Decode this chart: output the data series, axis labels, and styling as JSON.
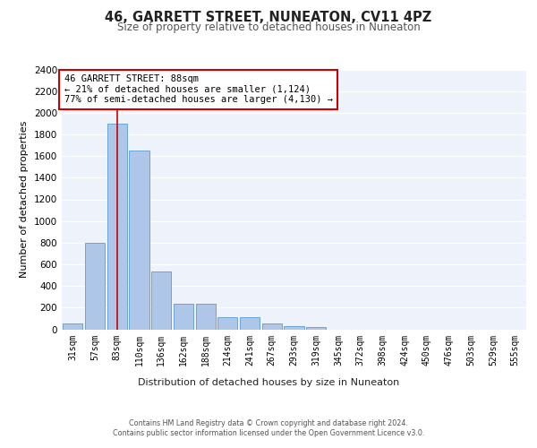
{
  "title1": "46, GARRETT STREET, NUNEATON, CV11 4PZ",
  "title2": "Size of property relative to detached houses in Nuneaton",
  "xlabel": "Distribution of detached houses by size in Nuneaton",
  "ylabel": "Number of detached properties",
  "bar_labels": [
    "31sqm",
    "57sqm",
    "83sqm",
    "110sqm",
    "136sqm",
    "162sqm",
    "188sqm",
    "214sqm",
    "241sqm",
    "267sqm",
    "293sqm",
    "319sqm",
    "345sqm",
    "372sqm",
    "398sqm",
    "424sqm",
    "450sqm",
    "476sqm",
    "503sqm",
    "529sqm",
    "555sqm"
  ],
  "bar_values": [
    50,
    800,
    1900,
    1650,
    530,
    235,
    235,
    110,
    110,
    55,
    30,
    20,
    0,
    0,
    0,
    0,
    0,
    0,
    0,
    0,
    0
  ],
  "bar_color": "#aec6e8",
  "bar_edge_color": "#5b9bd5",
  "bg_color": "#eef2fa",
  "grid_color": "#ffffff",
  "vline_x": 2,
  "vline_color": "#cc0000",
  "annotation_title": "46 GARRETT STREET: 88sqm",
  "annotation_line2": "← 21% of detached houses are smaller (1,124)",
  "annotation_line3": "77% of semi-detached houses are larger (4,130) →",
  "annotation_box_color": "#ffffff",
  "annotation_box_edge": "#cc0000",
  "ylim": [
    0,
    2400
  ],
  "yticks": [
    0,
    200,
    400,
    600,
    800,
    1000,
    1200,
    1400,
    1600,
    1800,
    2000,
    2200,
    2400
  ],
  "footer1": "Contains HM Land Registry data © Crown copyright and database right 2024.",
  "footer2": "Contains public sector information licensed under the Open Government Licence v3.0."
}
